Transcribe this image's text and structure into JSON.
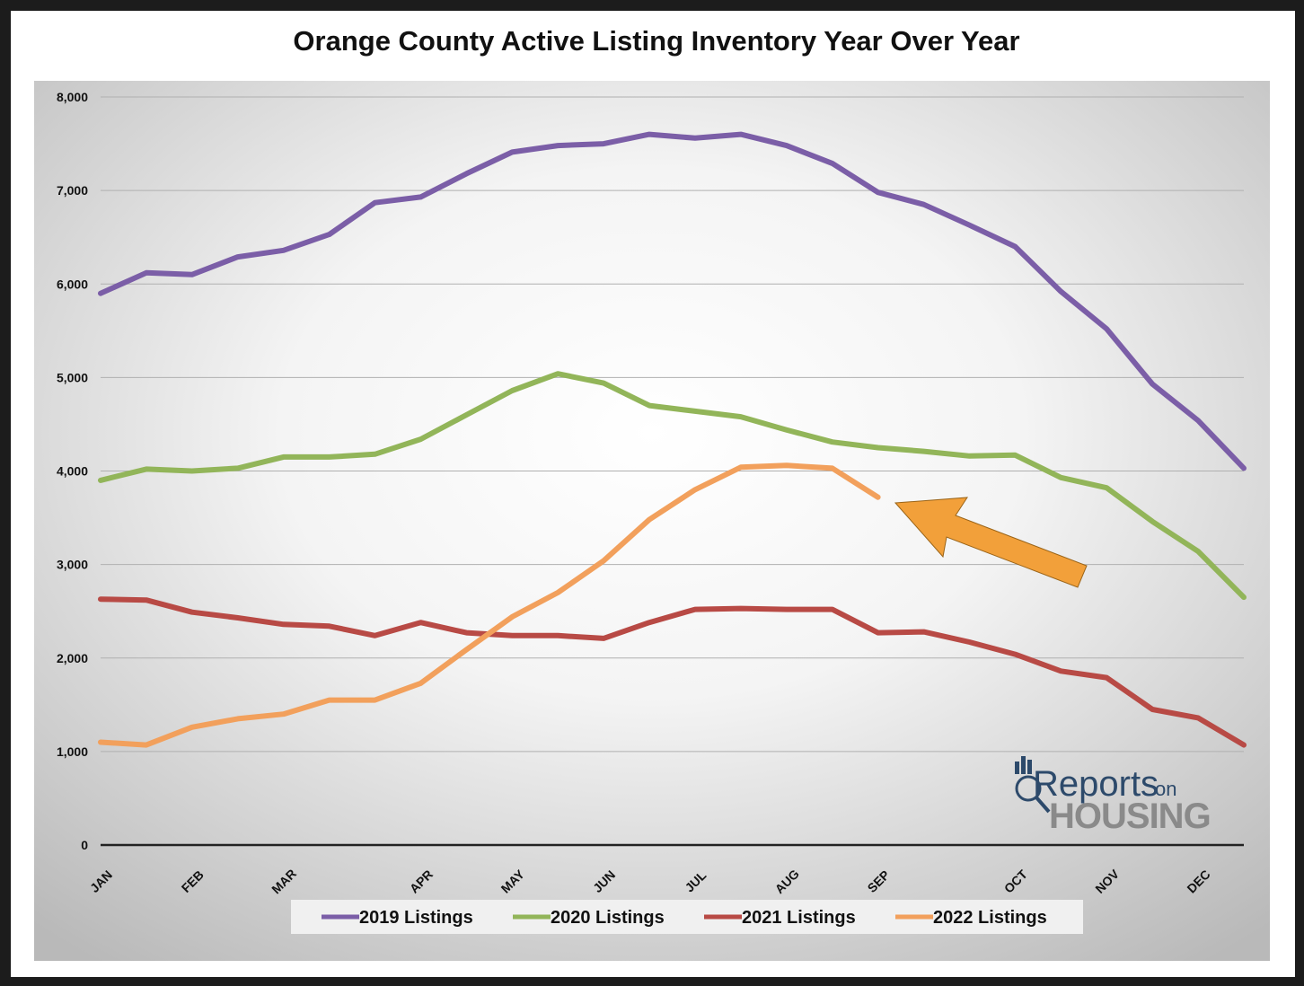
{
  "chart_data": {
    "type": "line",
    "title": "Orange County Active Listing Inventory Year Over Year",
    "xlabel": "",
    "ylabel": "",
    "ylim": [
      0,
      8000
    ],
    "yticks": [
      0,
      1000,
      2000,
      3000,
      4000,
      5000,
      6000,
      7000,
      8000
    ],
    "ytick_labels": [
      "0",
      "1,000",
      "2,000",
      "3,000",
      "4,000",
      "5,000",
      "6,000",
      "7,000",
      "8,000"
    ],
    "x_month_labels": [
      "JAN",
      "FEB",
      "MAR",
      "APR",
      "MAY",
      "JUN",
      "JUL",
      "AUG",
      "SEP",
      "OCT",
      "NOV",
      "DEC"
    ],
    "x_month_label_positions": [
      0,
      2,
      4,
      7,
      9,
      11,
      13,
      15,
      17,
      20,
      22,
      24
    ],
    "points_per_series": 26,
    "grid": true,
    "legend_position": "bottom",
    "series": [
      {
        "name": "2019 Listings",
        "color": "#7b5ea7",
        "values": [
          5900,
          6120,
          6100,
          6290,
          6360,
          6530,
          6870,
          6930,
          7180,
          7410,
          7480,
          7500,
          7600,
          7560,
          7600,
          7480,
          7290,
          6980,
          6850,
          6630,
          6400,
          5920,
          5520,
          4930,
          4540,
          4030
        ]
      },
      {
        "name": "2020 Listings",
        "color": "#92b559",
        "values": [
          3900,
          4020,
          4000,
          4030,
          4150,
          4150,
          4180,
          4340,
          4600,
          4860,
          5040,
          4940,
          4700,
          4640,
          4580,
          4440,
          4310,
          4250,
          4210,
          4160,
          4170,
          3930,
          3820,
          3460,
          3140,
          2650
        ]
      },
      {
        "name": "2021 Listings",
        "color": "#b84a45",
        "values": [
          2630,
          2620,
          2490,
          2430,
          2360,
          2340,
          2240,
          2380,
          2270,
          2240,
          2240,
          2210,
          2380,
          2520,
          2530,
          2520,
          2520,
          2270,
          2280,
          2170,
          2040,
          1860,
          1790,
          1450,
          1360,
          1070
        ]
      },
      {
        "name": "2022 Listings",
        "color": "#f2a05c",
        "values": [
          1100,
          1070,
          1260,
          1350,
          1400,
          1550,
          1550,
          1730,
          2090,
          2440,
          2700,
          3040,
          3480,
          3800,
          4040,
          4060,
          4030,
          3720
        ]
      }
    ],
    "annotations": [
      "arrow pointing to end of 2022 Listings line"
    ]
  },
  "logo": {
    "line1": "Reports",
    "line1_suffix": "on",
    "line2": "HOUSING"
  }
}
